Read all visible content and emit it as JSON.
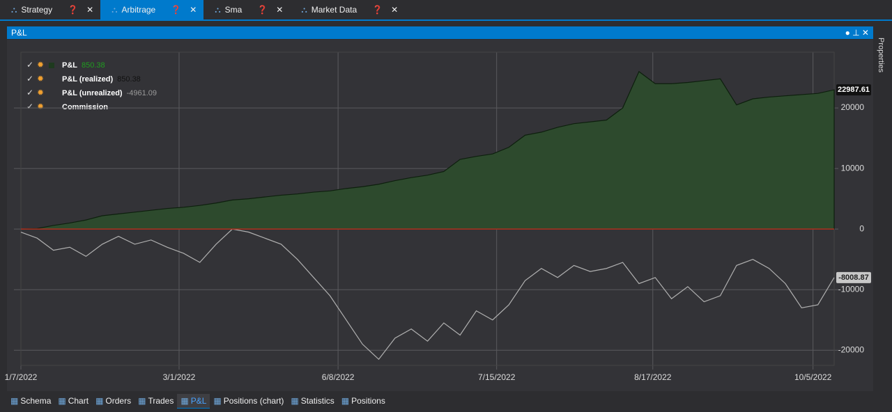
{
  "tabs": [
    "Strategy",
    "Arbitrage",
    "Sma",
    "Market Data"
  ],
  "active_tab": 1,
  "panel_title": "P&L",
  "side_panel": "Properties",
  "bottom_tabs": [
    "Schema",
    "Chart",
    "Orders",
    "Trades",
    "P&L",
    "Positions (chart)",
    "Statistics",
    "Positions"
  ],
  "active_bottom_tab": 4,
  "chart_data": {
    "type": "area",
    "legend": [
      {
        "name": "P&L",
        "value": 850.38,
        "color": "#1f9d1f"
      },
      {
        "name": "P&L (realized)",
        "value": 850.38,
        "color": "#111111"
      },
      {
        "name": "P&L (unrealized)",
        "value": -4961.09,
        "color": "#9a9a9a"
      },
      {
        "name": "Commission"
      }
    ],
    "x": [
      0,
      2,
      4,
      6,
      8,
      10,
      12,
      14,
      16,
      18,
      20,
      22,
      24,
      26,
      28,
      30,
      32,
      34,
      36,
      38,
      40,
      42,
      44,
      46,
      48,
      50,
      52,
      54,
      56,
      58,
      60,
      62,
      64,
      66,
      68,
      70,
      72,
      74,
      76,
      78,
      80,
      82,
      84,
      86,
      88,
      90,
      92,
      94,
      96,
      98,
      100
    ],
    "xlim": [
      0,
      100
    ],
    "xticks": [
      {
        "value": 0,
        "label": "1/7/2022"
      },
      {
        "value": 19.45,
        "label": "3/1/2022"
      },
      {
        "value": 39.0,
        "label": "6/8/2022"
      },
      {
        "value": 58.5,
        "label": "7/15/2022"
      },
      {
        "value": 77.7,
        "label": "8/17/2022"
      },
      {
        "value": 97.4,
        "label": "10/5/2022"
      }
    ],
    "ylim": [
      -22500,
      29200
    ],
    "yticks": [
      20000,
      10000,
      0,
      -10000,
      -20000
    ],
    "grid": true,
    "series": [
      {
        "name": "P&L",
        "color": "#2d4a2d",
        "line_color": "#0d1f0d",
        "values": [
          0,
          100,
          600,
          1000,
          1500,
          2200,
          2500,
          2800,
          3100,
          3400,
          3600,
          3900,
          4300,
          4800,
          5000,
          5300,
          5600,
          5800,
          6100,
          6300,
          6700,
          7000,
          7400,
          8000,
          8500,
          8900,
          9500,
          11500,
          12000,
          12400,
          13500,
          15500,
          16000,
          16800,
          17400,
          17700,
          18000,
          20000,
          26000,
          24000,
          24000,
          24200,
          24500,
          24800,
          20500,
          21500,
          21800,
          22000,
          22200,
          22400,
          22987.61
        ]
      },
      {
        "name": "P&L (unrealized)",
        "color": "#b0b0b0",
        "values": [
          -500,
          -1500,
          -3500,
          -3000,
          -4500,
          -2500,
          -1200,
          -2500,
          -1800,
          -3000,
          -4000,
          -5500,
          -2500,
          0,
          -500,
          -1500,
          -2500,
          -5000,
          -8000,
          -11000,
          -15000,
          -19000,
          -21500,
          -18000,
          -16500,
          -18500,
          -15500,
          -17500,
          -13500,
          -15000,
          -12500,
          -8500,
          -6500,
          -8000,
          -6000,
          -7000,
          -6500,
          -5500,
          -9000,
          -8000,
          -11500,
          -9500,
          -12000,
          -11000,
          -6000,
          -5000,
          -6500,
          -9000,
          -13000,
          -12500,
          -8008.87
        ]
      }
    ]
  }
}
